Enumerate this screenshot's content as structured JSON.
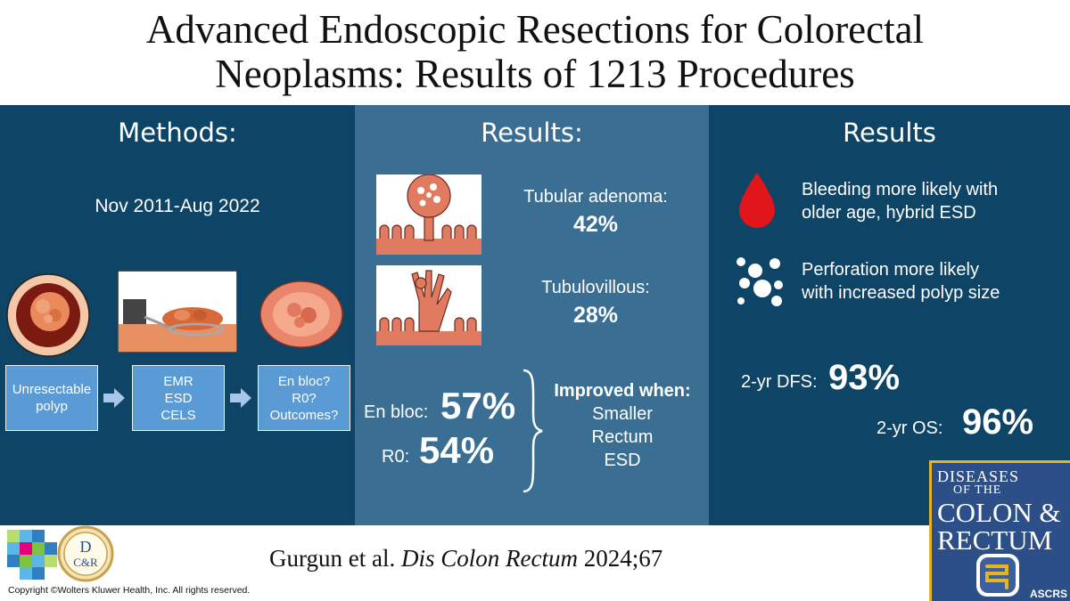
{
  "title": {
    "line1": "Advanced Endoscopic Resections for Colorectal",
    "line2": "Neoplasms: Results of 1213 Procedures"
  },
  "methods": {
    "heading": "Methods:",
    "date_range": "Nov 2011-Aug 2022",
    "flow": [
      {
        "lines": [
          "Unresectable",
          "polyp"
        ]
      },
      {
        "lines": [
          "EMR",
          "ESD",
          "CELS"
        ]
      },
      {
        "lines": [
          "En bloc?",
          "R0?",
          "Outcomes?"
        ]
      }
    ]
  },
  "results": {
    "heading": "Results:",
    "histology": [
      {
        "label": "Tubular adenoma:",
        "value": "42%"
      },
      {
        "label": "Tubulovillous:",
        "value": "28%"
      }
    ],
    "en_bloc": {
      "label": "En bloc:",
      "value": "57%"
    },
    "r0": {
      "label": "R0:",
      "value": "54%"
    },
    "improved": {
      "title": "Improved when:",
      "items": [
        "Smaller",
        "Rectum",
        "ESD"
      ]
    }
  },
  "results2": {
    "heading": "Results",
    "bleeding": [
      "Bleeding more likely with",
      "older age, hybrid ESD"
    ],
    "perforation": [
      "Perforation more likely",
      "with increased polyp size"
    ],
    "dfs": {
      "label": "2-yr DFS:",
      "value": "93%"
    },
    "os": {
      "label": "2-yr OS:",
      "value": "96%"
    }
  },
  "journal_cover": {
    "line1": "DISEASES",
    "line2": "OF THE",
    "line3": "COLON &",
    "line4": "RECTUM",
    "society": "ASCRS"
  },
  "footer": {
    "authors": "Gurgun et al.",
    "journal": "Dis Colon Rectum",
    "year_vol": "2024;67",
    "copyright": "Copyright ©Wolters Kluwer Health, Inc. All rights reserved.",
    "dcr_logo_letters": [
      "D",
      "C&R"
    ]
  },
  "colors": {
    "dark_panel": "#0e4466",
    "mid_panel": "#3a6f93",
    "flow_box": "#5b9bd5",
    "tissue": "#e07b62",
    "blood_drop": "#e0161b",
    "cover_blue": "#2b4f86",
    "cover_gold": "#e8b321"
  }
}
